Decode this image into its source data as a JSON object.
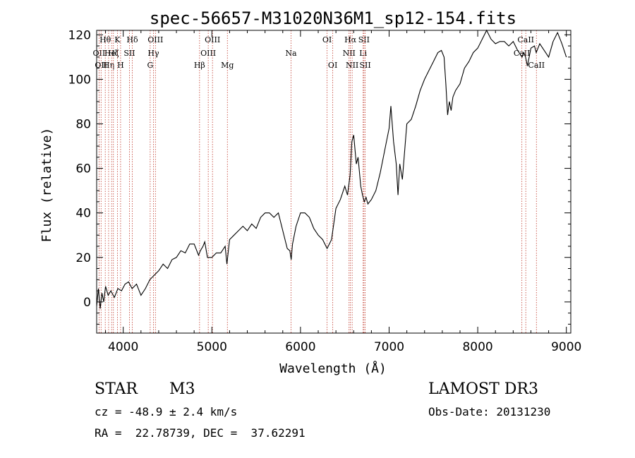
{
  "colors": {
    "spectrum": "#000000",
    "line_marker": "#c0392b",
    "text": "#000000",
    "background": "#ffffff"
  },
  "chart_data": {
    "type": "line",
    "title": "spec-56657-M31020N36M1_sp12-154.fits",
    "xlabel": "Wavelength (Å)",
    "ylabel": "Flux (relative)",
    "xlim": [
      3700,
      9050
    ],
    "ylim": [
      -14,
      122
    ],
    "x_ticks": [
      4000,
      5000,
      6000,
      7000,
      8000,
      9000
    ],
    "y_ticks": [
      0,
      20,
      40,
      60,
      80,
      100,
      120
    ],
    "series": [
      {
        "name": "spectrum",
        "x": [
          3700,
          3720,
          3740,
          3760,
          3780,
          3800,
          3830,
          3860,
          3900,
          3940,
          3980,
          4020,
          4060,
          4100,
          4150,
          4200,
          4250,
          4300,
          4350,
          4400,
          4450,
          4500,
          4550,
          4600,
          4650,
          4700,
          4750,
          4800,
          4850,
          4870,
          4900,
          4920,
          4950,
          5000,
          5050,
          5100,
          5150,
          5170,
          5200,
          5250,
          5300,
          5350,
          5400,
          5450,
          5500,
          5550,
          5600,
          5650,
          5700,
          5750,
          5800,
          5850,
          5880,
          5895,
          5910,
          5950,
          6000,
          6050,
          6100,
          6150,
          6200,
          6250,
          6300,
          6350,
          6400,
          6450,
          6500,
          6530,
          6560,
          6580,
          6600,
          6630,
          6650,
          6680,
          6700,
          6720,
          6740,
          6760,
          6800,
          6850,
          6900,
          6950,
          7000,
          7020,
          7050,
          7080,
          7100,
          7120,
          7150,
          7200,
          7250,
          7300,
          7350,
          7400,
          7450,
          7500,
          7550,
          7590,
          7620,
          7640,
          7660,
          7680,
          7700,
          7720,
          7750,
          7800,
          7850,
          7900,
          7950,
          8000,
          8050,
          8100,
          8150,
          8200,
          8250,
          8300,
          8350,
          8400,
          8450,
          8500,
          8520,
          8540,
          8560,
          8600,
          8640,
          8660,
          8700,
          8750,
          8800,
          8850,
          8900,
          8950,
          9000
        ],
        "y": [
          -2,
          6,
          -3,
          4,
          0,
          7,
          3,
          5,
          2,
          6,
          5,
          8,
          9,
          6,
          8,
          3,
          6,
          10,
          12,
          14,
          17,
          15,
          19,
          20,
          23,
          22,
          26,
          26,
          21,
          23,
          25,
          27,
          20,
          20,
          22,
          22,
          25,
          17,
          28,
          30,
          32,
          34,
          32,
          35,
          33,
          38,
          40,
          40,
          38,
          40,
          32,
          24,
          23,
          19,
          26,
          34,
          40,
          40,
          38,
          33,
          30,
          28,
          24,
          28,
          42,
          46,
          52,
          48,
          57,
          72,
          75,
          62,
          65,
          52,
          48,
          45,
          47,
          44,
          46,
          50,
          58,
          68,
          78,
          88,
          72,
          62,
          48,
          62,
          55,
          80,
          82,
          88,
          95,
          100,
          104,
          108,
          112,
          113,
          110,
          98,
          84,
          90,
          86,
          92,
          95,
          98,
          105,
          108,
          112,
          114,
          118,
          122,
          118,
          116,
          117,
          117,
          115,
          117,
          113,
          110,
          112,
          110,
          106,
          114,
          115,
          112,
          116,
          113,
          110,
          117,
          121,
          116,
          110
        ]
      }
    ],
    "line_markers": [
      {
        "wavelength": 3727,
        "label": "OII",
        "tier": 1
      },
      {
        "wavelength": 3750,
        "label": "OII",
        "tier": 2
      },
      {
        "wavelength": 3797,
        "label": "Hθ",
        "tier": 0
      },
      {
        "wavelength": 3835,
        "label": "Hη",
        "tier": 2
      },
      {
        "wavelength": 3869,
        "label": "HeI",
        "tier": 1
      },
      {
        "wavelength": 3889,
        "label": "Hζ",
        "tier": 1
      },
      {
        "wavelength": 3934,
        "label": "K",
        "tier": 0
      },
      {
        "wavelength": 3970,
        "label": "H",
        "tier": 2
      },
      {
        "wavelength": 4070,
        "label": "SII",
        "tier": 1
      },
      {
        "wavelength": 4102,
        "label": "Hδ",
        "tier": 0
      },
      {
        "wavelength": 4304,
        "label": "G",
        "tier": 2
      },
      {
        "wavelength": 4341,
        "label": "Hγ",
        "tier": 1
      },
      {
        "wavelength": 4363,
        "label": "OIII",
        "tier": 0
      },
      {
        "wavelength": 4861,
        "label": "Hβ",
        "tier": 2
      },
      {
        "wavelength": 4959,
        "label": "OIII",
        "tier": 1
      },
      {
        "wavelength": 5007,
        "label": "OIII",
        "tier": 0
      },
      {
        "wavelength": 5175,
        "label": "Mg",
        "tier": 2
      },
      {
        "wavelength": 5893,
        "label": "Na",
        "tier": 1
      },
      {
        "wavelength": 6300,
        "label": "OI",
        "tier": 0
      },
      {
        "wavelength": 6364,
        "label": "OI",
        "tier": 2
      },
      {
        "wavelength": 6548,
        "label": "NII",
        "tier": 1
      },
      {
        "wavelength": 6563,
        "label": "Hα",
        "tier": 0
      },
      {
        "wavelength": 6583,
        "label": "NII",
        "tier": 2
      },
      {
        "wavelength": 6707,
        "label": "Li",
        "tier": 1
      },
      {
        "wavelength": 6716,
        "label": "SII",
        "tier": 0
      },
      {
        "wavelength": 6730,
        "label": "SII",
        "tier": 2
      },
      {
        "wavelength": 8498,
        "label": "CaII",
        "tier": 1
      },
      {
        "wavelength": 8542,
        "label": "CaII",
        "tier": 0
      },
      {
        "wavelength": 8662,
        "label": "CaII",
        "tier": 2
      }
    ]
  },
  "info": {
    "class_label": "STAR",
    "subclass": "M3",
    "redshift_text": "cz = -48.9 ± 2.4 km/s",
    "coords_text": "RA =  22.78739, DEC =  37.62291",
    "survey": "LAMOST DR3",
    "obs_date": "Obs-Date: 20131230"
  }
}
